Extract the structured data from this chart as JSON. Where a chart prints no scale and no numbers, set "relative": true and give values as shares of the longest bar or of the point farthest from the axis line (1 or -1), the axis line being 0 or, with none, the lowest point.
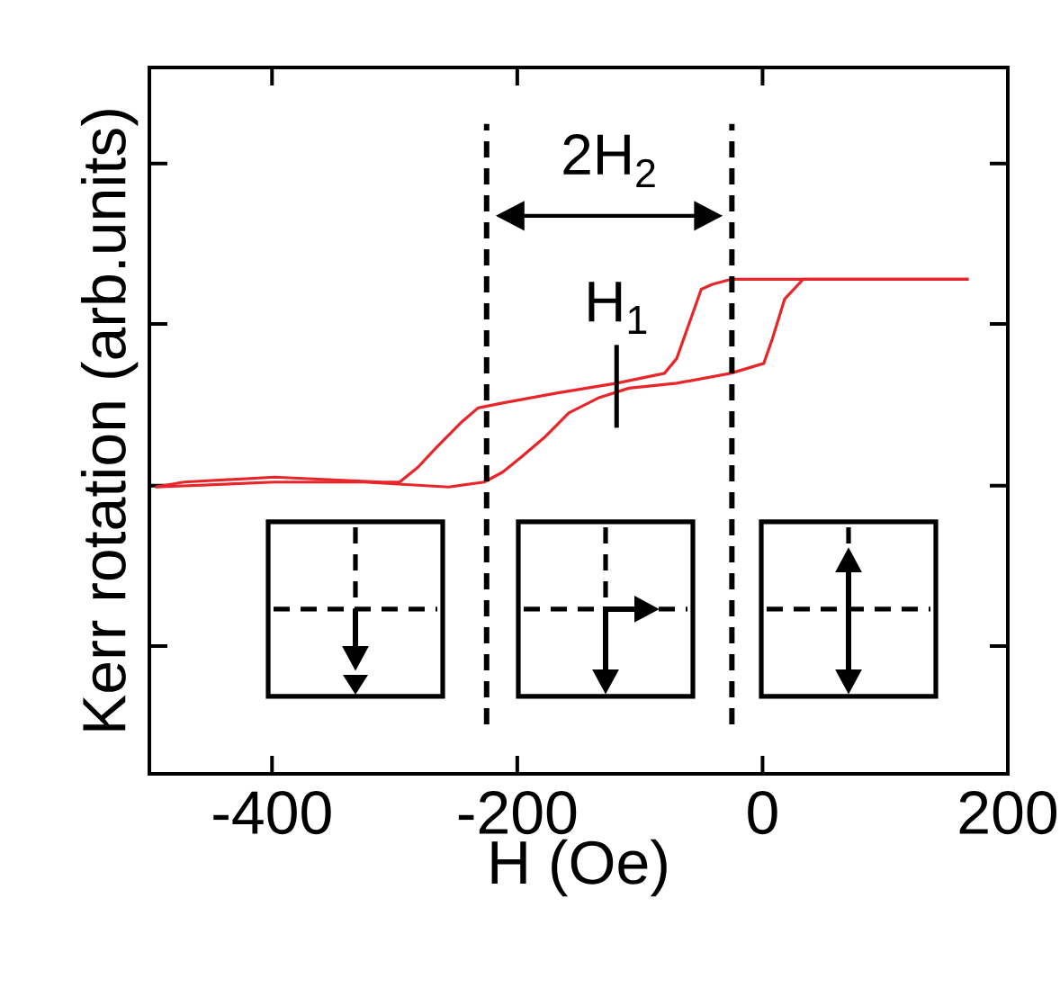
{
  "chart_data": {
    "type": "line",
    "relative": true,
    "xlabel": "H (Oe)",
    "ylabel": "Kerr rotation (arb.units)",
    "xlim": [
      -500,
      200
    ],
    "xticks": [
      -400,
      -200,
      0,
      200
    ],
    "tick_labels": "x",
    "line_style": "solid",
    "series": [
      {
        "color": "#e8262a",
        "x": [
          -495,
          -398,
          -325,
          -256,
          -227,
          -212,
          -197,
          -178,
          -158,
          -134,
          -109,
          -70,
          -26,
          1,
          8,
          18,
          33,
          67,
          168
        ],
        "values": [
          0.58,
          0.59,
          0.59,
          0.58,
          0.59,
          0.61,
          0.64,
          0.68,
          0.73,
          0.76,
          0.78,
          0.79,
          0.81,
          0.83,
          0.88,
          0.96,
          1.0,
          1.0,
          1.0
        ]
      },
      {
        "color": "#e8262a",
        "x": [
          168,
          18,
          -26,
          -41,
          -50,
          -60,
          -70,
          -80,
          -119,
          -168,
          -212,
          -232,
          -246,
          -266,
          -281,
          -296,
          -310,
          -398,
          -472,
          -495
        ],
        "values": [
          1.0,
          1.0,
          1.0,
          0.99,
          0.98,
          0.91,
          0.84,
          0.81,
          0.79,
          0.77,
          0.75,
          0.74,
          0.71,
          0.66,
          0.62,
          0.59,
          0.59,
          0.6,
          0.59,
          0.58
        ]
      }
    ],
    "ref_lines": [
      {
        "axis": "x",
        "value": -225,
        "color": "#000000",
        "line_style": "dashed"
      },
      {
        "axis": "x",
        "value": -25,
        "color": "#000000",
        "line_style": "dashed"
      }
    ],
    "annotations": [
      "2H$_{2}$",
      {
        "text": "H$_{1}$",
        "x": -119,
        "y": 0.78
      }
    ]
  }
}
